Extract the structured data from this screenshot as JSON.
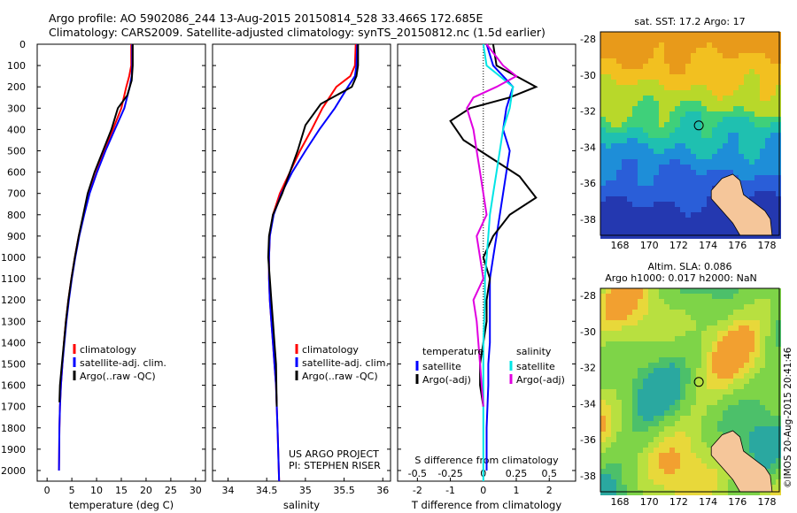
{
  "header": {
    "line1": "Argo profile: AO 5902086_244 13-Aug-2015 20150814_528 33.466S 172.685E",
    "line2": "Climatology: CARS2009. Satellite-adjusted climatology: synTS_20150812.nc (1.5d earlier)"
  },
  "colors": {
    "climatology": "#ff0000",
    "satellite": "#0000ff",
    "argo": "#000000",
    "sal_satellite": "#00e5e5",
    "sal_argo": "#e000e0",
    "land": "#f5c69a",
    "bg": "#ffffff"
  },
  "credit": {
    "project": "US ARGO PROJECT",
    "pi": "PI: STEPHEN RISER"
  },
  "stamp": "©IMOS 20-Aug-2015 20:41:46",
  "depth_ticks": [
    "0",
    "100",
    "200",
    "300",
    "400",
    "500",
    "600",
    "700",
    "800",
    "900",
    "1000",
    "1100",
    "1200",
    "1300",
    "1400",
    "1500",
    "1600",
    "1700",
    "1800",
    "1900",
    "2000"
  ],
  "chart_data": [
    {
      "type": "line",
      "id": "temperature",
      "xlabel": "temperature (deg C)",
      "xlim": [
        -2,
        32
      ],
      "ylim": [
        2050,
        0
      ],
      "xticks": [
        "0",
        "5",
        "10",
        "15",
        "20",
        "25",
        "30"
      ],
      "legend": [
        "climatology",
        "satellite-adj. clim.",
        "Argo(..raw -QC)"
      ],
      "series": [
        {
          "name": "climatology",
          "color": "#ff0000",
          "x": [
            17.0,
            17.0,
            16.6,
            16.0,
            15.0,
            13.3,
            11.6,
            10.0,
            8.5,
            7.4,
            6.4,
            5.6,
            4.9,
            4.3,
            3.8,
            3.4,
            3.1,
            2.8,
            2.6,
            2.5,
            2.4
          ],
          "y": [
            0,
            100,
            150,
            200,
            300,
            400,
            500,
            600,
            700,
            800,
            900,
            1000,
            1100,
            1200,
            1300,
            1400,
            1500,
            1600,
            1700,
            1800,
            2000
          ]
        },
        {
          "name": "satellite-adj. clim.",
          "color": "#0000ff",
          "x": [
            17.2,
            17.2,
            17.1,
            16.7,
            15.6,
            13.7,
            11.8,
            10.1,
            8.6,
            7.5,
            6.5,
            5.7,
            5.0,
            4.4,
            3.9,
            3.5,
            3.1,
            2.8,
            2.6,
            2.5,
            2.4
          ],
          "y": [
            0,
            100,
            150,
            200,
            300,
            400,
            500,
            600,
            700,
            800,
            900,
            1000,
            1100,
            1200,
            1300,
            1400,
            1500,
            1600,
            1700,
            1800,
            2000
          ]
        },
        {
          "name": "Argo(..raw -QC)",
          "color": "#000000",
          "x": [
            17.3,
            17.3,
            17.1,
            16.2,
            14.3,
            13.0,
            11.3,
            9.6,
            8.2,
            7.3,
            6.4,
            5.6,
            4.9,
            4.3,
            3.8,
            3.4,
            3.0,
            2.6,
            2.5
          ],
          "y": [
            0,
            100,
            170,
            240,
            300,
            400,
            500,
            600,
            700,
            800,
            900,
            1000,
            1100,
            1200,
            1300,
            1400,
            1500,
            1600,
            1680
          ]
        }
      ]
    },
    {
      "type": "line",
      "id": "salinity",
      "xlabel": "salinity",
      "xlim": [
        33.8,
        36.1
      ],
      "ylim": [
        2050,
        0
      ],
      "xticks": [
        "34",
        "34.5",
        "35",
        "35.5",
        "36"
      ],
      "legend": [
        "climatology",
        "satellite-adj. clim.",
        "Argo(..raw -QC)"
      ],
      "series": [
        {
          "name": "climatology",
          "color": "#ff0000",
          "x": [
            35.65,
            35.64,
            35.58,
            35.4,
            35.22,
            35.08,
            34.93,
            34.8,
            34.67,
            34.58,
            34.54,
            34.53,
            34.53,
            34.54,
            34.56,
            34.58,
            34.6,
            34.62,
            34.64,
            34.66
          ],
          "y": [
            0,
            100,
            150,
            200,
            300,
            400,
            500,
            600,
            700,
            800,
            900,
            1000,
            1100,
            1200,
            1300,
            1400,
            1500,
            1600,
            1800,
            2050
          ]
        },
        {
          "name": "satellite-adj. clim.",
          "color": "#0000ff",
          "x": [
            35.67,
            35.66,
            35.64,
            35.55,
            35.38,
            35.18,
            35.0,
            34.83,
            34.69,
            34.59,
            34.54,
            34.53,
            34.53,
            34.54,
            34.56,
            34.58,
            34.6,
            34.62,
            34.64,
            34.66
          ],
          "y": [
            0,
            100,
            150,
            200,
            300,
            400,
            500,
            600,
            700,
            800,
            900,
            1000,
            1100,
            1200,
            1300,
            1400,
            1500,
            1600,
            1800,
            2050
          ]
        },
        {
          "name": "Argo(..raw -QC)",
          "color": "#000000",
          "x": [
            35.68,
            35.68,
            35.66,
            35.6,
            35.2,
            35.0,
            34.9,
            34.8,
            34.7,
            34.58,
            34.53,
            34.52,
            34.54,
            34.56,
            34.58,
            34.6,
            34.62,
            34.63
          ],
          "y": [
            0,
            100,
            150,
            200,
            280,
            380,
            500,
            600,
            700,
            800,
            900,
            1000,
            1100,
            1200,
            1300,
            1400,
            1500,
            1700
          ]
        }
      ]
    },
    {
      "type": "line",
      "id": "difference",
      "xlabel": "T difference from climatology",
      "top_label": "S difference from climatology",
      "xlim": [
        -2.6,
        2.8
      ],
      "ylim": [
        2050,
        0
      ],
      "xticks": [
        "-2",
        "-1",
        "0",
        "1",
        "2"
      ],
      "top_xticks": [
        "-0.5",
        "-0.25",
        "0",
        "0.25",
        "0.5"
      ],
      "legend_groups": [
        {
          "title": "temperature",
          "items": [
            "satellite",
            "Argo(-adj)"
          ]
        },
        {
          "title": "salinity",
          "items": [
            "satellite",
            "Argo(-adj)"
          ]
        }
      ],
      "series": [
        {
          "name": "temperature satellite",
          "color": "#0000ff",
          "x": [
            0.1,
            0.3,
            0.6,
            0.9,
            0.7,
            0.6,
            0.8,
            0.7,
            0.6,
            0.5,
            0.4,
            0.3,
            0.2,
            0.2,
            0.2,
            0.2,
            0.15,
            0.15,
            0.1,
            0.1
          ],
          "y": [
            0,
            100,
            150,
            200,
            300,
            400,
            500,
            600,
            700,
            800,
            900,
            1000,
            1100,
            1200,
            1300,
            1400,
            1500,
            1600,
            1800,
            2000
          ]
        },
        {
          "name": "temperature Argo(-adj)",
          "color": "#000000",
          "x": [
            0.3,
            0.4,
            1.0,
            1.6,
            0.8,
            -0.4,
            -1.0,
            -0.6,
            0.4,
            1.1,
            1.6,
            0.8,
            0.3,
            0.0,
            0.2,
            0.1,
            0.1,
            0.0,
            -0.1,
            -0.1,
            0.0
          ],
          "y": [
            0,
            100,
            150,
            200,
            250,
            300,
            360,
            450,
            550,
            620,
            720,
            800,
            900,
            1000,
            1100,
            1200,
            1300,
            1400,
            1500,
            1600,
            1700
          ]
        },
        {
          "name": "salinity satellite",
          "color": "#00e5e5",
          "x": [
            0.0,
            0.1,
            0.5,
            0.9,
            0.8,
            0.6,
            0.5,
            0.4,
            0.3,
            0.2,
            0.15,
            0.1,
            0.05,
            0.05,
            0.0,
            0.0,
            0.0,
            0.0
          ],
          "y": [
            0,
            100,
            150,
            200,
            300,
            400,
            500,
            600,
            700,
            800,
            900,
            1000,
            1100,
            1200,
            1400,
            1600,
            1800,
            2050
          ]
        },
        {
          "name": "salinity Argo(-adj)",
          "color": "#e000e0",
          "x": [
            0.1,
            0.6,
            1.0,
            0.4,
            -0.3,
            -0.5,
            -0.3,
            -0.2,
            -0.1,
            0.0,
            0.1,
            -0.2,
            -0.1,
            0.0,
            -0.3,
            -0.2,
            -0.1,
            0.0
          ],
          "y": [
            0,
            100,
            150,
            200,
            250,
            300,
            400,
            500,
            600,
            700,
            800,
            900,
            1000,
            1100,
            1200,
            1300,
            1500,
            1700
          ]
        }
      ]
    }
  ],
  "maps": [
    {
      "id": "sst",
      "title": "sat. SST: 17.2 Argo: 17",
      "yticks": [
        "-28",
        "-30",
        "-32",
        "-34",
        "-36",
        "-38"
      ],
      "xticks": [
        "168",
        "170",
        "172",
        "174",
        "176",
        "178"
      ]
    },
    {
      "id": "sla",
      "title1": "Altim. SLA: 0.086",
      "title2": "Argo h1000: 0.017 h2000: NaN",
      "yticks": [
        "-28",
        "-30",
        "-32",
        "-34",
        "-36",
        "-38"
      ],
      "xticks": [
        "168",
        "170",
        "172",
        "174",
        "176",
        "178"
      ]
    }
  ]
}
